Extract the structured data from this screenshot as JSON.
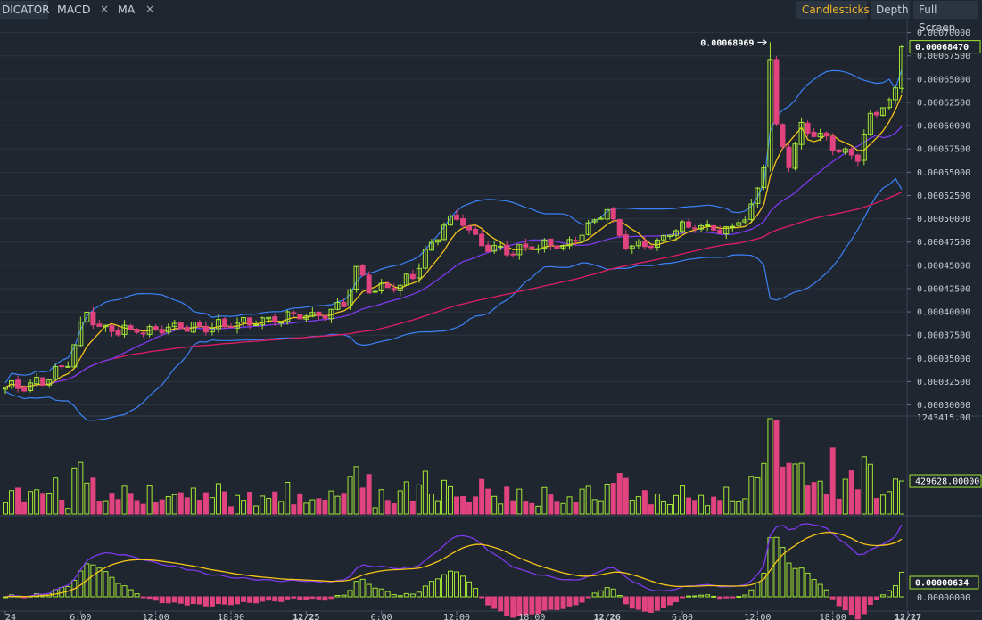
{
  "toolbar": {
    "indicator_label": "DICATOR",
    "tabs": [
      {
        "label": "MACD",
        "close": "×"
      },
      {
        "label": "MA",
        "close": "×"
      }
    ],
    "buttons": [
      "Candlesticks",
      "Depth",
      "Full Screen"
    ],
    "active_button": "Candlesticks"
  },
  "colors": {
    "background": "#1f2630",
    "grid": "#2c3440",
    "up": "#a3e635",
    "down": "#e0437e",
    "ma_short": "#f5c518",
    "ma_mid": "#7c3aed",
    "ma_long": "#e11d63",
    "bollinger": "#3b82f6",
    "macd_line": "#7c3aed",
    "signal_line": "#f5c518",
    "price_marker": "#a3e635"
  },
  "chart_data": {
    "type": "candlestick",
    "price_axis": {
      "ticks": [
        "0.00030000",
        "0.00032500",
        "0.00035000",
        "0.00037500",
        "0.00040000",
        "0.00042500",
        "0.00045000",
        "0.00047500",
        "0.00050000",
        "0.00052500",
        "0.00055000",
        "0.00057500",
        "0.00060000",
        "0.00062500",
        "0.00065000",
        "0.00067500",
        "0.00070000"
      ],
      "range": [
        0.00029,
        0.000714
      ]
    },
    "time_axis": {
      "ticks": [
        "24",
        "6:00",
        "12:00",
        "18:00",
        "12/25",
        "6:00",
        "12:00",
        "18:00",
        "12/26",
        "6:00",
        "12:00",
        "18:00",
        "12/27"
      ],
      "range": [
        "12/24 00:00",
        "12/27 00:00"
      ]
    },
    "high_annotation": {
      "label": "0.00068969",
      "value": 0.00068969,
      "time": "12/26 12:45"
    },
    "last_price": {
      "label": "0.00068470",
      "value": 0.0006847
    },
    "volume": {
      "max_label": "1243415.00",
      "last_label": "429628.00000",
      "max_value": 1243415,
      "last_value": 429628
    },
    "macd": {
      "last_label": "0.00000634",
      "zero_label": "0.00000000"
    },
    "candles": {
      "interval": "30m",
      "count": 144,
      "close_keyframes": [
        {
          "time": "12/24 00:00",
          "close": 0.000318
        },
        {
          "time": "12/24 01:00",
          "close": 0.00032
        },
        {
          "time": "12/24 03:00",
          "close": 0.000326
        },
        {
          "time": "12/24 05:00",
          "close": 0.000345
        },
        {
          "time": "12/24 06:30",
          "close": 0.0004
        },
        {
          "time": "12/24 07:30",
          "close": 0.000383
        },
        {
          "time": "12/24 09:00",
          "close": 0.00038
        },
        {
          "time": "12/24 12:00",
          "close": 0.000381
        },
        {
          "time": "12/24 15:00",
          "close": 0.000384
        },
        {
          "time": "12/24 18:00",
          "close": 0.000386
        },
        {
          "time": "12/24 21:00",
          "close": 0.00039
        },
        {
          "time": "12/24 23:00",
          "close": 0.000395
        },
        {
          "time": "12/25 01:00",
          "close": 0.000395
        },
        {
          "time": "12/25 03:00",
          "close": 0.00041
        },
        {
          "time": "12/25 04:00",
          "close": 0.000445
        },
        {
          "time": "12/25 05:00",
          "close": 0.000425
        },
        {
          "time": "12/25 07:00",
          "close": 0.000425
        },
        {
          "time": "12/25 08:30",
          "close": 0.00044
        },
        {
          "time": "12/25 11:00",
          "close": 0.000495
        },
        {
          "time": "12/25 12:30",
          "close": 0.0005
        },
        {
          "time": "12/25 14:00",
          "close": 0.00047
        },
        {
          "time": "12/25 16:00",
          "close": 0.000465
        },
        {
          "time": "12/25 18:00",
          "close": 0.00047
        },
        {
          "time": "12/25 21:00",
          "close": 0.000472
        },
        {
          "time": "12/26 00:00",
          "close": 0.00051
        },
        {
          "time": "12/26 01:00",
          "close": 0.00048
        },
        {
          "time": "12/26 02:00",
          "close": 0.00047
        },
        {
          "time": "12/26 04:00",
          "close": 0.000475
        },
        {
          "time": "12/26 06:00",
          "close": 0.000495
        },
        {
          "time": "12/26 08:00",
          "close": 0.000487
        },
        {
          "time": "12/26 10:00",
          "close": 0.00049
        },
        {
          "time": "12/26 11:30",
          "close": 0.00051
        },
        {
          "time": "12/26 12:30",
          "close": 0.00056
        },
        {
          "time": "12/26 13:00",
          "close": 0.00067
        },
        {
          "time": "12/26 13:30",
          "close": 0.000595
        },
        {
          "time": "12/26 14:30",
          "close": 0.00056
        },
        {
          "time": "12/26 15:30",
          "close": 0.0006
        },
        {
          "time": "12/26 17:00",
          "close": 0.00059
        },
        {
          "time": "12/26 19:00",
          "close": 0.00057
        },
        {
          "time": "12/26 20:00",
          "close": 0.000565
        },
        {
          "time": "12/26 21:00",
          "close": 0.00061
        },
        {
          "time": "12/26 22:30",
          "close": 0.000625
        },
        {
          "time": "12/26 23:30",
          "close": 0.00065
        },
        {
          "time": "12/27 00:00",
          "close": 0.0006847
        }
      ]
    },
    "moving_averages": [
      {
        "name": "short",
        "color_key": "ma_short"
      },
      {
        "name": "mid",
        "color_key": "ma_mid"
      },
      {
        "name": "long",
        "color_key": "ma_long"
      }
    ],
    "grid": true
  }
}
